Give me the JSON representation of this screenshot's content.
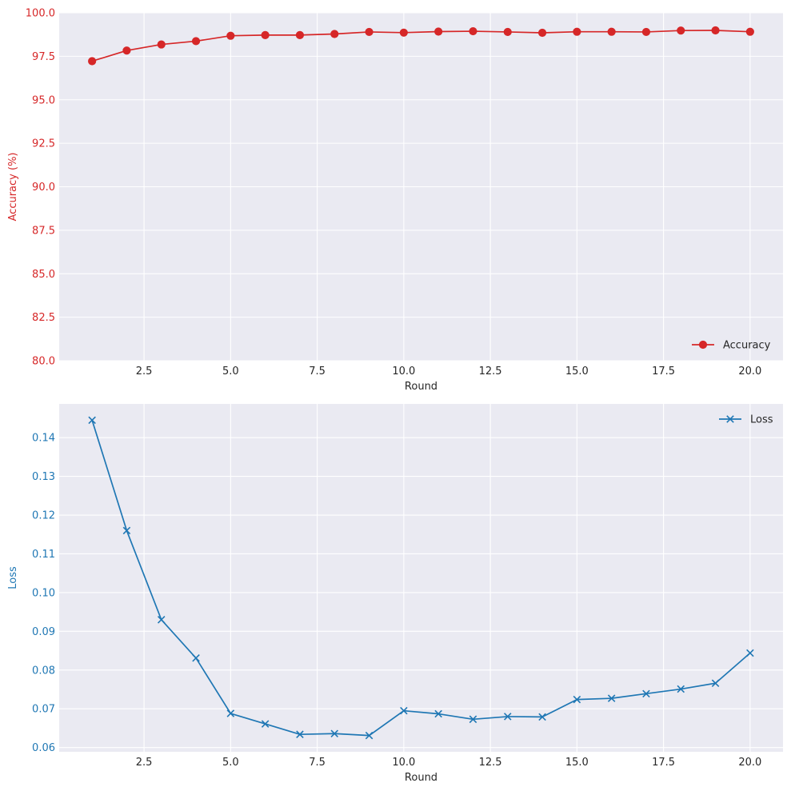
{
  "chart_data": [
    {
      "type": "line",
      "title": "",
      "xlabel": "Round",
      "ylabel": "Accuracy (%)",
      "xlim": [
        0.05,
        20.95
      ],
      "ylim": [
        80.0,
        100.0
      ],
      "xticks": [
        2.5,
        5.0,
        7.5,
        10.0,
        12.5,
        15.0,
        17.5,
        20.0
      ],
      "yticks": [
        80.0,
        82.5,
        85.0,
        87.5,
        90.0,
        92.5,
        95.0,
        97.5,
        100.0
      ],
      "x_tick_labels": [
        "2.5",
        "5.0",
        "7.5",
        "10.0",
        "12.5",
        "15.0",
        "17.5",
        "20.0"
      ],
      "y_tick_labels": [
        "80.0",
        "82.5",
        "85.0",
        "87.5",
        "90.0",
        "92.5",
        "95.0",
        "97.5",
        "100.0"
      ],
      "grid": true,
      "legend": "lower-right",
      "ylabel_color": "#d62728",
      "series": [
        {
          "name": "Accuracy",
          "color": "#d62728",
          "marker": "circle",
          "x": [
            1,
            2,
            3,
            4,
            5,
            6,
            7,
            8,
            9,
            10,
            11,
            12,
            13,
            14,
            15,
            16,
            17,
            18,
            19,
            20
          ],
          "y": [
            97.22,
            97.83,
            98.18,
            98.37,
            98.68,
            98.72,
            98.72,
            98.78,
            98.9,
            98.86,
            98.92,
            98.94,
            98.9,
            98.85,
            98.91,
            98.91,
            98.9,
            98.98,
            98.99,
            98.91
          ]
        }
      ]
    },
    {
      "type": "line",
      "title": "",
      "xlabel": "Round",
      "ylabel": "Loss",
      "xlim": [
        0.05,
        20.95
      ],
      "ylim": [
        0.0589,
        0.1487
      ],
      "xticks": [
        2.5,
        5.0,
        7.5,
        10.0,
        12.5,
        15.0,
        17.5,
        20.0
      ],
      "yticks": [
        0.06,
        0.07,
        0.08,
        0.09,
        0.1,
        0.11,
        0.12,
        0.13,
        0.14
      ],
      "x_tick_labels": [
        "2.5",
        "5.0",
        "7.5",
        "10.0",
        "12.5",
        "15.0",
        "17.5",
        "20.0"
      ],
      "y_tick_labels": [
        "0.06",
        "0.07",
        "0.08",
        "0.09",
        "0.10",
        "0.11",
        "0.12",
        "0.13",
        "0.14"
      ],
      "grid": true,
      "legend": "upper-right",
      "ylabel_color": "#1f77b4",
      "series": [
        {
          "name": "Loss",
          "color": "#1f77b4",
          "marker": "x",
          "x": [
            1,
            2,
            3,
            4,
            5,
            6,
            7,
            8,
            9,
            10,
            11,
            12,
            13,
            14,
            15,
            16,
            17,
            18,
            19,
            20
          ],
          "y": [
            0.1445,
            0.116,
            0.093,
            0.0831,
            0.0688,
            0.0661,
            0.0634,
            0.0636,
            0.0631,
            0.0695,
            0.0687,
            0.0673,
            0.068,
            0.0679,
            0.0724,
            0.0727,
            0.0739,
            0.0751,
            0.0766,
            0.0844
          ]
        }
      ]
    }
  ],
  "colors": {
    "plot_background": "#eaeaf2",
    "grid": "#ffffff",
    "text": "#262626"
  }
}
